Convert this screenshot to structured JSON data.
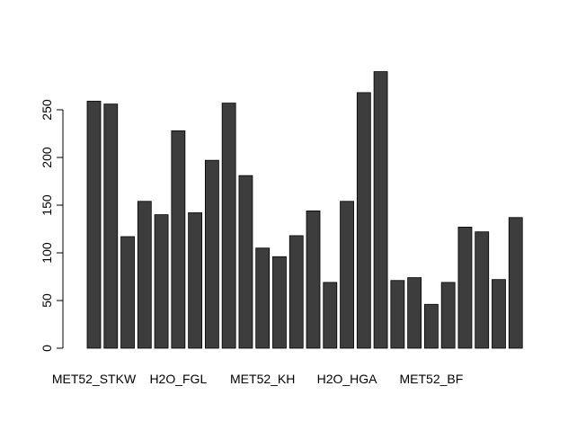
{
  "chart_data": {
    "type": "bar",
    "categories": [
      "MET52_STKW",
      "",
      "",
      "",
      "",
      "H2O_FGL",
      "",
      "",
      "",
      "",
      "MET52_KH",
      "",
      "",
      "",
      "",
      "H2O_HGA",
      "",
      "",
      "",
      "",
      "MET52_BF",
      "",
      "",
      "",
      "",
      ""
    ],
    "values": [
      259,
      256,
      117,
      154,
      140,
      228,
      142,
      197,
      257,
      181,
      105,
      96,
      118,
      144,
      69,
      154,
      268,
      290,
      71,
      74,
      46,
      69,
      127,
      122,
      72,
      137
    ],
    "bar_color": "#3d3d3d",
    "bar_border_color": "#000000",
    "ylim": [
      0,
      290
    ],
    "y_ticks": [
      0,
      50,
      100,
      150,
      200,
      250
    ],
    "grid": false,
    "legend": "none"
  }
}
